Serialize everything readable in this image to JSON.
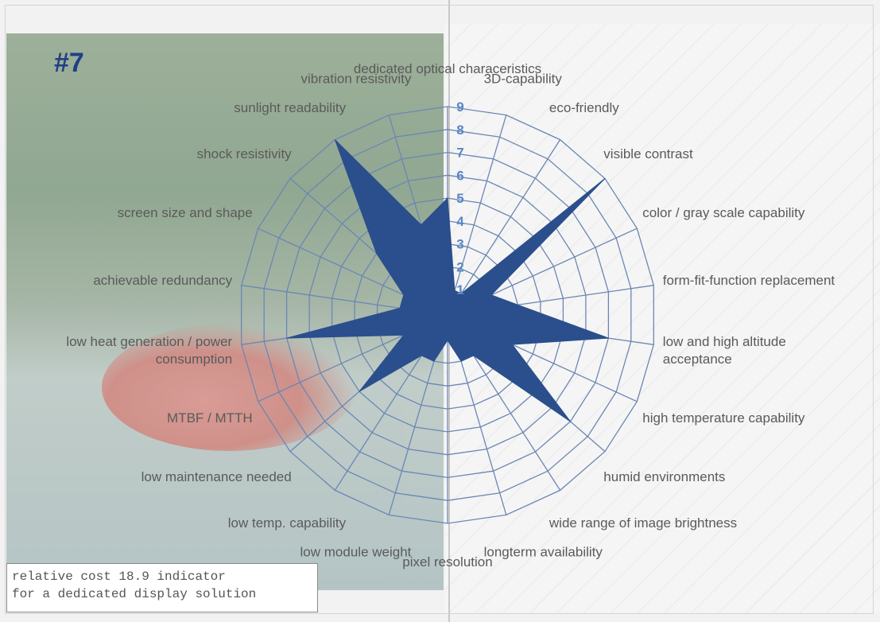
{
  "page": {
    "number": "#7"
  },
  "cost_note": {
    "line1": "relative cost 18.9 indicator",
    "line2": "for a dedicated display solution"
  },
  "colors": {
    "fill": "#2b4f8c",
    "grid": "#6b87b3",
    "tick": "#5a86c2",
    "label": "#5a5a5a",
    "page_number": "#1f3f86"
  },
  "chart_data": {
    "type": "radar",
    "title": "",
    "rmax": 9,
    "ticks": [
      "1",
      "2",
      "3",
      "4",
      "5",
      "6",
      "7",
      "8",
      "9"
    ],
    "categories": [
      [
        "dedicated optical characeristics"
      ],
      [
        "3D-capability"
      ],
      [
        "eco-friendly"
      ],
      [
        "visible contrast"
      ],
      [
        "color / gray scale capability"
      ],
      [
        "form-fit-function replacement"
      ],
      [
        "low and high altitude",
        "acceptance"
      ],
      [
        "high temperature capability"
      ],
      [
        "humid environments"
      ],
      [
        "wide range of image brightness"
      ],
      [
        "longterm availability"
      ],
      [
        "pixel resolution"
      ],
      [
        "low module weight"
      ],
      [
        "low temp. capability"
      ],
      [
        "low maintenance needed"
      ],
      [
        "MTBF / MTTH"
      ],
      [
        "low heat generation / power",
        "consumption"
      ],
      [
        "achievable redundancy"
      ],
      [
        "screen size and shape"
      ],
      [
        "shock  resistivity"
      ],
      [
        "sunlight readability"
      ],
      [
        "vibration resistivity"
      ]
    ],
    "series": [
      {
        "values": [
          5,
          1,
          1,
          9,
          2,
          3,
          7,
          3,
          7,
          2,
          2,
          1,
          2,
          2,
          5,
          2,
          7,
          2,
          2,
          4,
          9,
          4
        ]
      }
    ]
  }
}
